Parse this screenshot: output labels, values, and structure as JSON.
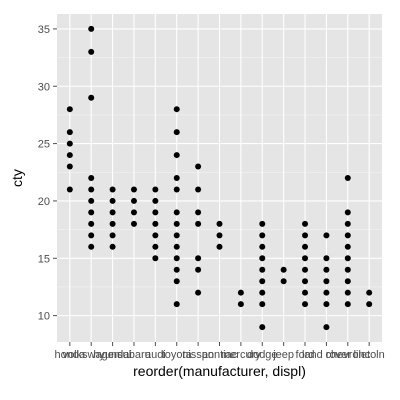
{
  "chart_data": {
    "type": "scatter",
    "title": "",
    "xlabel": "reorder(manufacturer, displ)",
    "ylabel": "cty",
    "categories": [
      "honda",
      "volkswagen",
      "hyundai",
      "subaru",
      "audi",
      "toyota",
      "nissan",
      "pontiac",
      "mercury",
      "dodge",
      "jeep",
      "ford",
      "land rover",
      "chevrolet",
      "lincoln"
    ],
    "y_ticks": [
      10,
      15,
      20,
      25,
      30,
      35
    ],
    "ylim": [
      7.7,
      36.3
    ],
    "grid": true,
    "legend": "none",
    "series": [
      {
        "points": [
          {
            "x": "honda",
            "y": 28
          },
          {
            "x": "honda",
            "y": 26
          },
          {
            "x": "honda",
            "y": 25
          },
          {
            "x": "honda",
            "y": 24
          },
          {
            "x": "honda",
            "y": 23
          },
          {
            "x": "honda",
            "y": 21
          },
          {
            "x": "volkswagen",
            "y": 35
          },
          {
            "x": "volkswagen",
            "y": 33
          },
          {
            "x": "volkswagen",
            "y": 29
          },
          {
            "x": "volkswagen",
            "y": 22
          },
          {
            "x": "volkswagen",
            "y": 21
          },
          {
            "x": "volkswagen",
            "y": 20
          },
          {
            "x": "volkswagen",
            "y": 19
          },
          {
            "x": "volkswagen",
            "y": 18
          },
          {
            "x": "volkswagen",
            "y": 17
          },
          {
            "x": "volkswagen",
            "y": 16
          },
          {
            "x": "hyundai",
            "y": 21
          },
          {
            "x": "hyundai",
            "y": 20
          },
          {
            "x": "hyundai",
            "y": 19
          },
          {
            "x": "hyundai",
            "y": 18
          },
          {
            "x": "hyundai",
            "y": 17
          },
          {
            "x": "hyundai",
            "y": 16
          },
          {
            "x": "subaru",
            "y": 21
          },
          {
            "x": "subaru",
            "y": 20
          },
          {
            "x": "subaru",
            "y": 19
          },
          {
            "x": "subaru",
            "y": 18
          },
          {
            "x": "audi",
            "y": 21
          },
          {
            "x": "audi",
            "y": 20
          },
          {
            "x": "audi",
            "y": 19
          },
          {
            "x": "audi",
            "y": 18
          },
          {
            "x": "audi",
            "y": 17
          },
          {
            "x": "audi",
            "y": 16
          },
          {
            "x": "audi",
            "y": 15
          },
          {
            "x": "toyota",
            "y": 28
          },
          {
            "x": "toyota",
            "y": 26
          },
          {
            "x": "toyota",
            "y": 24
          },
          {
            "x": "toyota",
            "y": 22
          },
          {
            "x": "toyota",
            "y": 21
          },
          {
            "x": "toyota",
            "y": 19
          },
          {
            "x": "toyota",
            "y": 18
          },
          {
            "x": "toyota",
            "y": 17
          },
          {
            "x": "toyota",
            "y": 16
          },
          {
            "x": "toyota",
            "y": 15
          },
          {
            "x": "toyota",
            "y": 14
          },
          {
            "x": "toyota",
            "y": 13
          },
          {
            "x": "toyota",
            "y": 11
          },
          {
            "x": "nissan",
            "y": 23
          },
          {
            "x": "nissan",
            "y": 21
          },
          {
            "x": "nissan",
            "y": 19
          },
          {
            "x": "nissan",
            "y": 18
          },
          {
            "x": "nissan",
            "y": 15
          },
          {
            "x": "nissan",
            "y": 14
          },
          {
            "x": "nissan",
            "y": 12
          },
          {
            "x": "pontiac",
            "y": 18
          },
          {
            "x": "pontiac",
            "y": 17
          },
          {
            "x": "pontiac",
            "y": 16
          },
          {
            "x": "mercury",
            "y": 12
          },
          {
            "x": "mercury",
            "y": 11
          },
          {
            "x": "dodge",
            "y": 18
          },
          {
            "x": "dodge",
            "y": 17
          },
          {
            "x": "dodge",
            "y": 16
          },
          {
            "x": "dodge",
            "y": 15
          },
          {
            "x": "dodge",
            "y": 14
          },
          {
            "x": "dodge",
            "y": 13
          },
          {
            "x": "dodge",
            "y": 12
          },
          {
            "x": "dodge",
            "y": 11
          },
          {
            "x": "dodge",
            "y": 9
          },
          {
            "x": "jeep",
            "y": 14
          },
          {
            "x": "jeep",
            "y": 13
          },
          {
            "x": "ford",
            "y": 18
          },
          {
            "x": "ford",
            "y": 17
          },
          {
            "x": "ford",
            "y": 16
          },
          {
            "x": "ford",
            "y": 15
          },
          {
            "x": "ford",
            "y": 14
          },
          {
            "x": "ford",
            "y": 13
          },
          {
            "x": "ford",
            "y": 12
          },
          {
            "x": "ford",
            "y": 11
          },
          {
            "x": "land rover",
            "y": 17
          },
          {
            "x": "land rover",
            "y": 15
          },
          {
            "x": "land rover",
            "y": 14
          },
          {
            "x": "land rover",
            "y": 13
          },
          {
            "x": "land rover",
            "y": 12
          },
          {
            "x": "land rover",
            "y": 11
          },
          {
            "x": "land rover",
            "y": 9
          },
          {
            "x": "chevrolet",
            "y": 22
          },
          {
            "x": "chevrolet",
            "y": 19
          },
          {
            "x": "chevrolet",
            "y": 18
          },
          {
            "x": "chevrolet",
            "y": 17
          },
          {
            "x": "chevrolet",
            "y": 16
          },
          {
            "x": "chevrolet",
            "y": 15
          },
          {
            "x": "chevrolet",
            "y": 14
          },
          {
            "x": "chevrolet",
            "y": 13
          },
          {
            "x": "chevrolet",
            "y": 12
          },
          {
            "x": "chevrolet",
            "y": 11
          },
          {
            "x": "lincoln",
            "y": 12
          },
          {
            "x": "lincoln",
            "y": 11
          }
        ]
      }
    ],
    "colors": {
      "panel": "#e5e5e5",
      "grid_major": "#ffffff",
      "grid_minor": "#f2f2f2",
      "point": "#000000",
      "tick_text": "#4d4d4d",
      "tick_mark": "#4d4d4d"
    }
  }
}
